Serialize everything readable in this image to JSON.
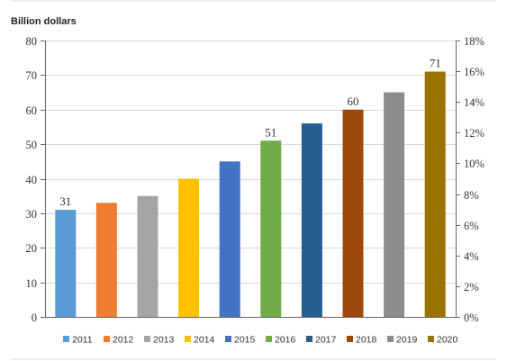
{
  "chart_data": {
    "type": "bar",
    "title": "",
    "left_axis_unit": "Billion dollars",
    "categories": [
      "2011",
      "2012",
      "2013",
      "2014",
      "2015",
      "2016",
      "2017",
      "2018",
      "2019",
      "2020"
    ],
    "values": [
      31,
      33,
      35,
      40,
      45,
      51,
      56,
      60,
      65,
      71
    ],
    "data_labels": [
      {
        "category": "2011",
        "text": "31"
      },
      {
        "category": "2016",
        "text": "51"
      },
      {
        "category": "2018",
        "text": "60"
      },
      {
        "category": "2020",
        "text": "71"
      }
    ],
    "colors": [
      "#5b9bd5",
      "#ed7d31",
      "#a5a5a5",
      "#ffc000",
      "#4472c4",
      "#70ad47",
      "#255e91",
      "#9e480e",
      "#8c8c8c",
      "#997300"
    ],
    "ylim": [
      0,
      80
    ],
    "yticks": [
      0,
      10,
      20,
      30,
      40,
      50,
      60,
      70,
      80
    ],
    "y2lim": [
      0,
      18
    ],
    "y2ticks": [
      "0%",
      "2%",
      "4%",
      "6%",
      "8%",
      "10%",
      "12%",
      "14%",
      "16%",
      "18%"
    ],
    "grid": true,
    "legend_position": "bottom"
  }
}
